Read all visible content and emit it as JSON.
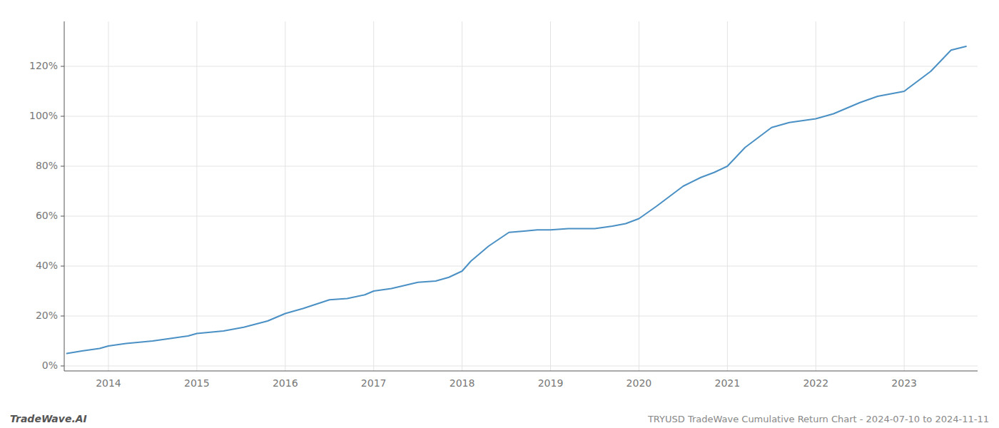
{
  "chart_data": {
    "type": "line",
    "title": "TRYUSD TradeWave Cumulative Return Chart - 2024-07-10 to 2024-11-11",
    "annotations": [
      "TradeWave.AI"
    ],
    "x": [
      2013.53,
      2013.7,
      2013.9,
      2014.0,
      2014.2,
      2014.5,
      2014.7,
      2014.9,
      2015.0,
      2015.3,
      2015.53,
      2015.8,
      2016.0,
      2016.2,
      2016.5,
      2016.7,
      2016.9,
      2017.0,
      2017.2,
      2017.5,
      2017.7,
      2017.85,
      2018.0,
      2018.1,
      2018.3,
      2018.53,
      2018.7,
      2018.85,
      2019.0,
      2019.2,
      2019.5,
      2019.7,
      2019.85,
      2020.0,
      2020.2,
      2020.5,
      2020.7,
      2020.85,
      2021.0,
      2021.2,
      2021.5,
      2021.7,
      2021.9,
      2022.0,
      2022.2,
      2022.5,
      2022.7,
      2022.85,
      2023.0,
      2023.3,
      2023.53,
      2023.7
    ],
    "values": [
      0.05,
      0.06,
      0.07,
      0.08,
      0.09,
      0.1,
      0.11,
      0.12,
      0.13,
      0.14,
      0.155,
      0.18,
      0.21,
      0.23,
      0.265,
      0.27,
      0.285,
      0.3,
      0.31,
      0.335,
      0.34,
      0.355,
      0.38,
      0.42,
      0.48,
      0.535,
      0.54,
      0.545,
      0.545,
      0.55,
      0.55,
      0.56,
      0.57,
      0.59,
      0.64,
      0.72,
      0.755,
      0.775,
      0.8,
      0.875,
      0.955,
      0.975,
      0.985,
      0.99,
      1.01,
      1.055,
      1.08,
      1.09,
      1.1,
      1.18,
      1.265,
      1.28
    ],
    "color": "#4a90c4",
    "xlim": [
      2013.5,
      2023.83
    ],
    "xticks": [
      2014,
      2015,
      2016,
      2017,
      2018,
      2019,
      2020,
      2021,
      2022,
      2023
    ],
    "ylim": [
      -0.02,
      1.38
    ],
    "yticks": [
      {
        "value": 0.0,
        "label": "0%"
      },
      {
        "value": 0.2,
        "label": "20%"
      },
      {
        "value": 0.4,
        "label": "40%"
      },
      {
        "value": 0.6,
        "label": "60%"
      },
      {
        "value": 0.8,
        "label": "80%"
      },
      {
        "value": 1.0,
        "label": "100%"
      },
      {
        "value": 1.2,
        "label": "120%"
      }
    ],
    "grid": true
  }
}
